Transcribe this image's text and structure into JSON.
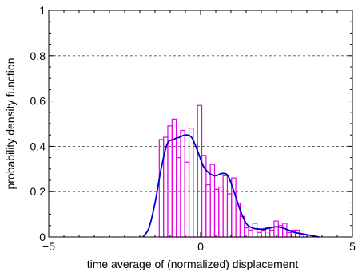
{
  "chart_data": {
    "type": "bar",
    "title": "",
    "xlabel": "time average of (normalized) displacement",
    "ylabel": "probability density function",
    "xlim": [
      -5,
      5
    ],
    "ylim": [
      0,
      1
    ],
    "x_ticks": [
      -5,
      0,
      5
    ],
    "x_tick_labels": [
      "−5",
      "0",
      "5"
    ],
    "y_ticks": [
      0,
      0.2,
      0.4,
      0.6,
      0.8,
      1
    ],
    "y_tick_labels": [
      "0",
      "0.2",
      "0.4",
      "0.6",
      "0.8",
      "1"
    ],
    "grid": "horizontal-dashed",
    "colors": {
      "histogram": "#e600e6",
      "density": "#0000c8"
    },
    "histogram": {
      "bin_width": 0.14,
      "bin_starts": [
        -1.36,
        -1.22,
        -1.08,
        -0.94,
        -0.8,
        -0.66,
        -0.52,
        -0.38,
        -0.24,
        -0.1,
        0.04,
        0.18,
        0.32,
        0.46,
        0.6,
        0.74,
        0.88,
        1.02,
        1.16,
        1.3,
        1.44,
        1.58,
        1.72,
        1.86,
        2.0,
        2.14,
        2.28,
        2.42,
        2.56,
        2.7,
        2.84,
        2.98,
        3.12,
        3.26,
        3.4
      ],
      "values": [
        0.43,
        0.44,
        0.49,
        0.52,
        0.35,
        0.47,
        0.33,
        0.48,
        0.41,
        0.58,
        0.36,
        0.23,
        0.32,
        0.21,
        0.22,
        0.27,
        0.19,
        0.26,
        0.15,
        0.09,
        0.04,
        0.03,
        0.06,
        0.02,
        0.03,
        0.04,
        0.03,
        0.07,
        0.05,
        0.06,
        0.02,
        0.03,
        0.03,
        0.01,
        0.01
      ]
    },
    "density_curve": {
      "x": [
        -1.9,
        -1.7,
        -1.5,
        -1.3,
        -1.1,
        -0.9,
        -0.7,
        -0.5,
        -0.3,
        -0.1,
        0.1,
        0.3,
        0.5,
        0.7,
        0.9,
        1.1,
        1.3,
        1.5,
        1.7,
        1.9,
        2.1,
        2.3,
        2.5,
        2.7,
        2.9,
        3.1,
        3.3,
        3.5,
        3.7,
        3.9
      ],
      "y": [
        0.0,
        0.04,
        0.15,
        0.3,
        0.41,
        0.43,
        0.44,
        0.45,
        0.44,
        0.38,
        0.31,
        0.28,
        0.27,
        0.28,
        0.27,
        0.2,
        0.12,
        0.06,
        0.04,
        0.035,
        0.035,
        0.04,
        0.045,
        0.04,
        0.03,
        0.02,
        0.015,
        0.01,
        0.005,
        0.0
      ]
    }
  }
}
